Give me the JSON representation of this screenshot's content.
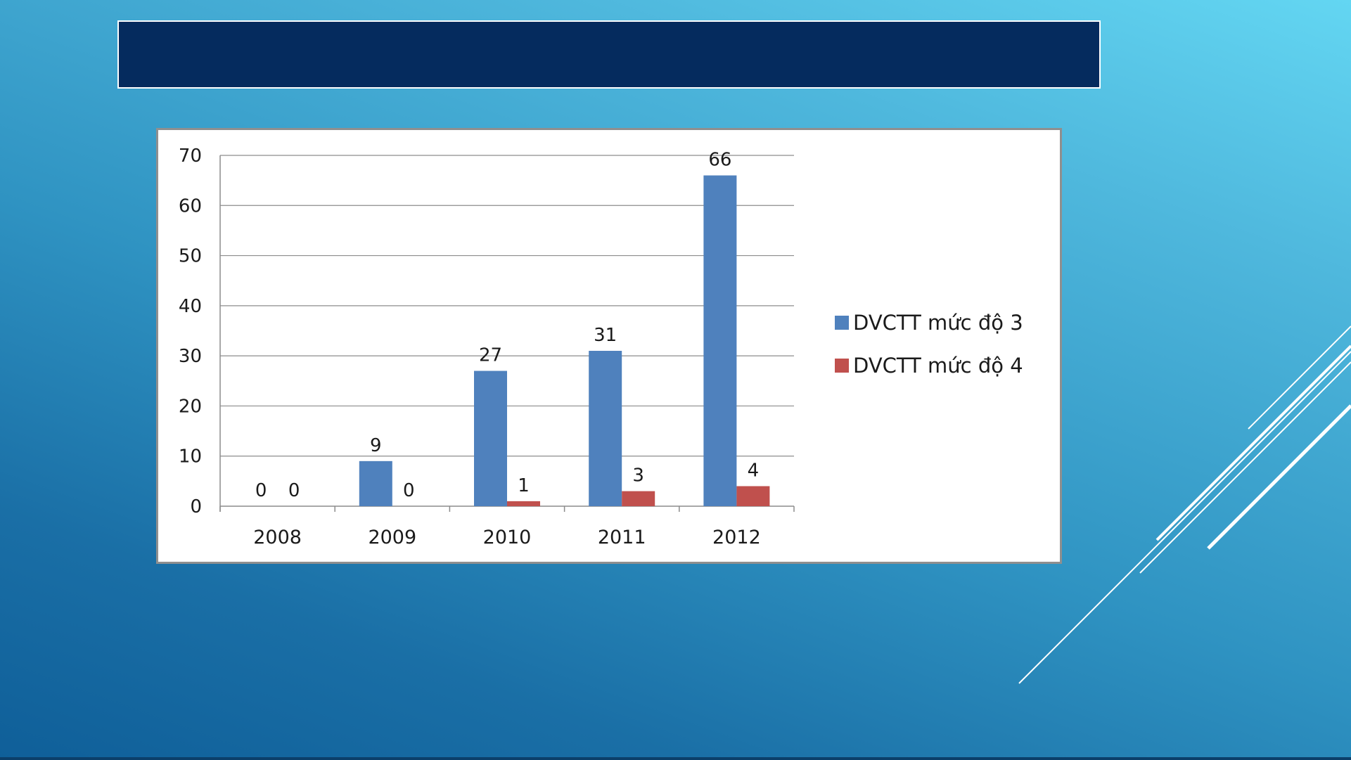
{
  "slide": {
    "title": ""
  },
  "colors": {
    "series_1": "#4f81bd",
    "series_2": "#c0504d",
    "title_bar": "#052b5e",
    "gridline": "#8c8c8c"
  },
  "chart_data": {
    "type": "bar",
    "title": "",
    "xlabel": "",
    "ylabel": "",
    "categories": [
      "2008",
      "2009",
      "2010",
      "2011",
      "2012"
    ],
    "series": [
      {
        "name": "DVCTT mức độ 3",
        "values": [
          0,
          9,
          27,
          31,
          66
        ]
      },
      {
        "name": "DVCTT mức độ 4",
        "values": [
          0,
          0,
          1,
          3,
          4
        ]
      }
    ],
    "ylim": [
      0,
      70
    ],
    "yticks": [
      0,
      10,
      20,
      30,
      40,
      50,
      60,
      70
    ],
    "grid": true,
    "legend_position": "right",
    "data_labels": true
  }
}
